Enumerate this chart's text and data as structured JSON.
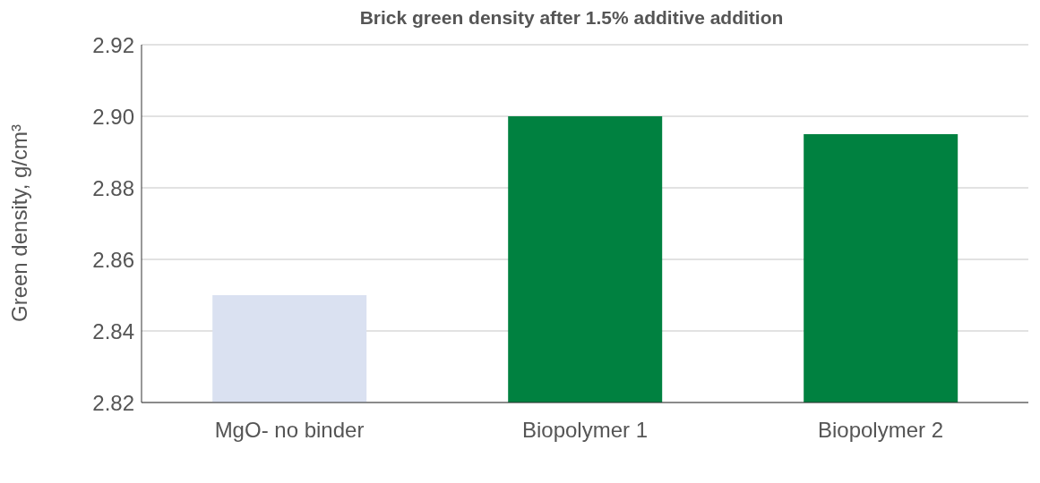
{
  "chart_data": {
    "type": "bar",
    "title": "Brick green density after 1.5% additive addition",
    "ylabel": "Green density, g/cm³",
    "categories": [
      "MgO- no binder",
      "Biopolymer 1",
      "Biopolymer 2"
    ],
    "values": [
      2.85,
      2.9,
      2.895
    ],
    "colors": [
      "#dae1f1",
      "#008140",
      "#008140"
    ],
    "ylim": [
      2.82,
      2.92
    ],
    "yticks": [
      {
        "value": 2.82,
        "label": "2.82"
      },
      {
        "value": 2.84,
        "label": "2.84"
      },
      {
        "value": 2.86,
        "label": "2.86"
      },
      {
        "value": 2.88,
        "label": "2.88"
      },
      {
        "value": 2.9,
        "label": "2.90"
      },
      {
        "value": 2.92,
        "label": "2.92"
      }
    ],
    "grid": "y",
    "legend": false
  }
}
